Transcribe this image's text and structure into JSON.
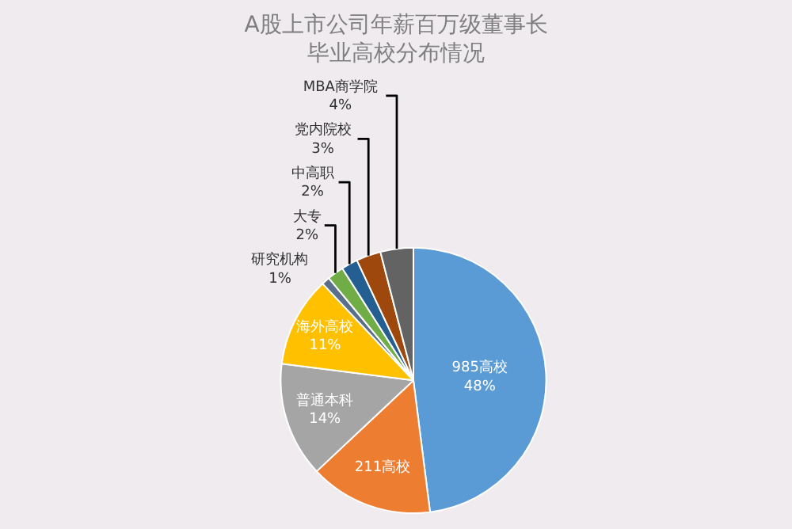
{
  "chart_data": {
    "type": "pie",
    "title": "A股上市公司年薪百万级董事长毕业高校分布情况",
    "categories": [
      "985高校",
      "211高校",
      "普通本科",
      "海外高校",
      "研究机构",
      "大专",
      "中高职",
      "党内院校",
      "MBA商学院"
    ],
    "values": [
      48,
      15,
      14,
      11,
      1,
      2,
      2,
      3,
      4
    ],
    "value_labels": [
      "48%",
      null,
      "14%",
      "11%",
      "1%",
      "2%",
      "2%",
      "3%",
      "4%"
    ],
    "colors": [
      "#5b9bd5",
      "#ed7d31",
      "#a5a5a5",
      "#ffc000",
      "#5a6f8a",
      "#70ad47",
      "#255e91",
      "#9e480e",
      "#636363"
    ],
    "legend": false
  }
}
